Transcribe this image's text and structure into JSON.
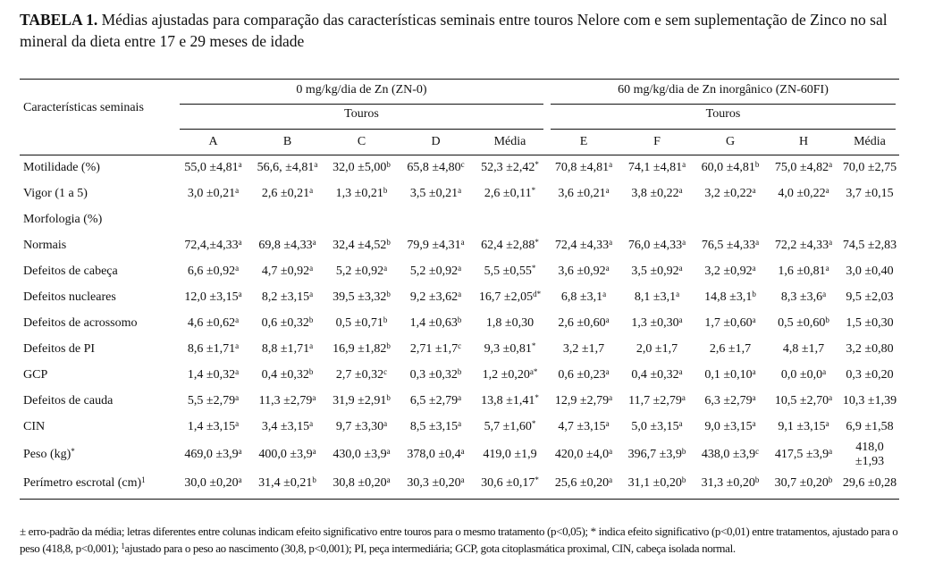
{
  "title": {
    "label": "TABELA 1.",
    "text": " Médias ajustadas para comparação das características seminais entre touros Nelore com e sem suplementação de Zinco no sal mineral da dieta entre 17 e 29 meses de idade"
  },
  "header": {
    "row_label": "Características seminais",
    "group1": "0 mg/kg/dia de Zn (ZN-0)",
    "group2": "60 mg/kg/dia de Zn inorgânico (ZN-60FI)",
    "subgroup1": "Touros",
    "subgroup2": "Touros",
    "columns": [
      "A",
      "B",
      "C",
      "D",
      "Média",
      "E",
      "F",
      "G",
      "H",
      "Média"
    ]
  },
  "rows": [
    {
      "label": "Motilidade (%)",
      "cells": [
        {
          "v": "55,0 ±4,81",
          "s": "a"
        },
        {
          "v": "56,6, ±4,81",
          "s": "a"
        },
        {
          "v": "32,0 ±5,00",
          "s": "b"
        },
        {
          "v": "65,8 ±4,80",
          "s": "c"
        },
        {
          "v": "52,3 ±2,42",
          "s": "*"
        },
        {
          "v": "70,8 ±4,81",
          "s": "a"
        },
        {
          "v": "74,1 ±4,81",
          "s": "a"
        },
        {
          "v": "60,0 ±4,81",
          "s": "b"
        },
        {
          "v": "75,0 ±4,82",
          "s": "a"
        },
        {
          "v": "70,0 ±2,75",
          "s": ""
        }
      ]
    },
    {
      "label": "Vigor (1 a 5)",
      "cells": [
        {
          "v": "3,0 ±0,21",
          "s": "a"
        },
        {
          "v": "2,6 ±0,21",
          "s": "a"
        },
        {
          "v": "1,3 ±0,21",
          "s": "b"
        },
        {
          "v": "3,5 ±0,21",
          "s": "a"
        },
        {
          "v": "2,6 ±0,11",
          "s": "*"
        },
        {
          "v": "3,6 ±0,21",
          "s": "a"
        },
        {
          "v": "3,8 ±0,22",
          "s": "a"
        },
        {
          "v": "3,2 ±0,22",
          "s": "a"
        },
        {
          "v": "4,0 ±0,22",
          "s": "a"
        },
        {
          "v": "3,7 ±0,15",
          "s": ""
        }
      ]
    },
    {
      "label": "Morfologia (%)",
      "cells": []
    },
    {
      "label": "Normais",
      "cells": [
        {
          "v": "72,4,±4,33",
          "s": "a"
        },
        {
          "v": "69,8 ±4,33",
          "s": "a"
        },
        {
          "v": "32,4 ±4,52",
          "s": "b"
        },
        {
          "v": "79,9 ±4,31",
          "s": "a"
        },
        {
          "v": "62,4 ±2,88",
          "s": "*"
        },
        {
          "v": "72,4 ±4,33",
          "s": "a"
        },
        {
          "v": "76,0 ±4,33",
          "s": "a"
        },
        {
          "v": "76,5 ±4,33",
          "s": "a"
        },
        {
          "v": "72,2 ±4,33",
          "s": "a"
        },
        {
          "v": "74,5 ±2,83",
          "s": ""
        }
      ]
    },
    {
      "label": "Defeitos de cabeça",
      "cells": [
        {
          "v": "6,6 ±0,92",
          "s": "a"
        },
        {
          "v": "4,7 ±0,92",
          "s": "a"
        },
        {
          "v": "5,2 ±0,92",
          "s": "a"
        },
        {
          "v": "5,2 ±0,92",
          "s": "a"
        },
        {
          "v": "5,5 ±0,55",
          "s": "*"
        },
        {
          "v": "3,6 ±0,92",
          "s": "a"
        },
        {
          "v": "3,5 ±0,92",
          "s": "a"
        },
        {
          "v": "3,2 ±0,92",
          "s": "a"
        },
        {
          "v": "1,6 ±0,81",
          "s": "a"
        },
        {
          "v": "3,0 ±0,40",
          "s": ""
        }
      ]
    },
    {
      "label": "Defeitos nucleares",
      "cells": [
        {
          "v": "12,0 ±3,15",
          "s": "a"
        },
        {
          "v": "8,2 ±3,15",
          "s": "a"
        },
        {
          "v": "39,5 ±3,32",
          "s": "b"
        },
        {
          "v": "9,2 ±3,62",
          "s": "a"
        },
        {
          "v": "16,7 ±2,05",
          "s": "d*"
        },
        {
          "v": "6,8 ±3,1",
          "s": "a"
        },
        {
          "v": "8,1 ±3,1",
          "s": "a"
        },
        {
          "v": "14,8 ±3,1",
          "s": "b"
        },
        {
          "v": "8,3 ±3,6",
          "s": "a"
        },
        {
          "v": "9,5 ±2,03",
          "s": ""
        }
      ]
    },
    {
      "label": "Defeitos de acrossomo",
      "cells": [
        {
          "v": "4,6 ±0,62",
          "s": "a"
        },
        {
          "v": "0,6 ±0,32",
          "s": "b"
        },
        {
          "v": "0,5 ±0,71",
          "s": "b"
        },
        {
          "v": "1,4 ±0,63",
          "s": "b"
        },
        {
          "v": "1,8 ±0,30",
          "s": ""
        },
        {
          "v": "2,6 ±0,60",
          "s": "a"
        },
        {
          "v": "1,3 ±0,30",
          "s": "a"
        },
        {
          "v": "1,7 ±0,60",
          "s": "a"
        },
        {
          "v": "0,5 ±0,60",
          "s": "b"
        },
        {
          "v": "1,5 ±0,30",
          "s": ""
        }
      ]
    },
    {
      "label": "Defeitos de PI",
      "cells": [
        {
          "v": "8,6 ±1,71",
          "s": "a"
        },
        {
          "v": "8,8 ±1,71",
          "s": "a"
        },
        {
          "v": "16,9 ±1,82",
          "s": "b"
        },
        {
          "v": "2,71 ±1,7",
          "s": "c"
        },
        {
          "v": "9,3 ±0,81",
          "s": "*"
        },
        {
          "v": "3,2 ±1,7",
          "s": ""
        },
        {
          "v": "2,0 ±1,7",
          "s": ""
        },
        {
          "v": "2,6 ±1,7",
          "s": ""
        },
        {
          "v": "4,8 ±1,7",
          "s": ""
        },
        {
          "v": "3,2 ±0,80",
          "s": ""
        }
      ]
    },
    {
      "label": "GCP",
      "cells": [
        {
          "v": "1,4 ±0,32",
          "s": "a"
        },
        {
          "v": "0,4 ±0,32",
          "s": "b"
        },
        {
          "v": "2,7 ±0,32",
          "s": "c"
        },
        {
          "v": "0,3 ±0,32",
          "s": "b"
        },
        {
          "v": "1,2 ±0,20",
          "s": "a*"
        },
        {
          "v": "0,6 ±0,23",
          "s": "a"
        },
        {
          "v": "0,4 ±0,32",
          "s": "a"
        },
        {
          "v": "0,1 ±0,10",
          "s": "a"
        },
        {
          "v": "0,0 ±0,0",
          "s": "a"
        },
        {
          "v": "0,3 ±0,20",
          "s": ""
        }
      ]
    },
    {
      "label": "Defeitos de cauda",
      "cells": [
        {
          "v": "5,5 ±2,79",
          "s": "a"
        },
        {
          "v": "11,3 ±2,79",
          "s": "a"
        },
        {
          "v": "31,9 ±2,91",
          "s": "b"
        },
        {
          "v": "6,5 ±2,79",
          "s": "a"
        },
        {
          "v": "13,8 ±1,41",
          "s": "*"
        },
        {
          "v": "12,9 ±2,79",
          "s": "a"
        },
        {
          "v": "11,7 ±2,79",
          "s": "a"
        },
        {
          "v": "6,3 ±2,79",
          "s": "a"
        },
        {
          "v": "10,5 ±2,70",
          "s": "a"
        },
        {
          "v": "10,3 ±1,39",
          "s": ""
        }
      ]
    },
    {
      "label": "CIN",
      "cells": [
        {
          "v": "1,4 ±3,15",
          "s": "a"
        },
        {
          "v": "3,4 ±3,15",
          "s": "a"
        },
        {
          "v": "9,7 ±3,30",
          "s": "a"
        },
        {
          "v": "8,5 ±3,15",
          "s": "a"
        },
        {
          "v": "5,7 ±1,60",
          "s": "*"
        },
        {
          "v": "4,7 ±3,15",
          "s": "a"
        },
        {
          "v": "5,0 ±3,15",
          "s": "a"
        },
        {
          "v": "9,0 ±3,15",
          "s": "a"
        },
        {
          "v": "9,1 ±3,15",
          "s": "a"
        },
        {
          "v": "6,9 ±1,58",
          "s": ""
        }
      ]
    },
    {
      "label": "Peso (kg)",
      "label_sup": "*",
      "cells": [
        {
          "v": "469,0 ±3,9",
          "s": "a"
        },
        {
          "v": "400,0 ±3,9",
          "s": "a"
        },
        {
          "v": "430,0 ±3,9",
          "s": "a"
        },
        {
          "v": "378,0 ±0,4",
          "s": "a"
        },
        {
          "v": "419,0 ±1,9",
          "s": ""
        },
        {
          "v": "420,0 ±4,0",
          "s": "a"
        },
        {
          "v": "396,7 ±3,9",
          "s": "b"
        },
        {
          "v": "438,0 ±3,9",
          "s": "c"
        },
        {
          "v": "417,5 ±3,9",
          "s": "a"
        },
        {
          "v": "418,0 ±1,93",
          "s": ""
        }
      ]
    },
    {
      "label": "Perímetro escrotal (cm)",
      "label_sup": "1",
      "cells": [
        {
          "v": "30,0 ±0,20",
          "s": "a"
        },
        {
          "v": "31,4 ±0,21",
          "s": "b"
        },
        {
          "v": "30,8 ±0,20",
          "s": "a"
        },
        {
          "v": "30,3 ±0,20",
          "s": "a"
        },
        {
          "v": "30,6 ±0,17",
          "s": "*"
        },
        {
          "v": "25,6 ±0,20",
          "s": "a"
        },
        {
          "v": "31,1 ±0,20",
          "s": "b"
        },
        {
          "v": "31,3 ±0,20",
          "s": "b"
        },
        {
          "v": "30,7 ±0,20",
          "s": "b"
        },
        {
          "v": "29,6 ±0,28",
          "s": ""
        }
      ]
    }
  ],
  "footnote": {
    "part1": "± erro-padrão da média; letras diferentes entre colunas indicam efeito significativo entre touros para o mesmo tratamento (p<0,05); * indica efeito significativo (p<0,01) entre tratamentos, ajustado para o peso (418,8, p<0,001); ",
    "sup": "1",
    "part2": "ajustado para o peso ao nascimento (30,8, p<0,001); PI, peça intermediária; GCP, gota citoplasmática proximal, CIN, cabeça isolada normal."
  }
}
